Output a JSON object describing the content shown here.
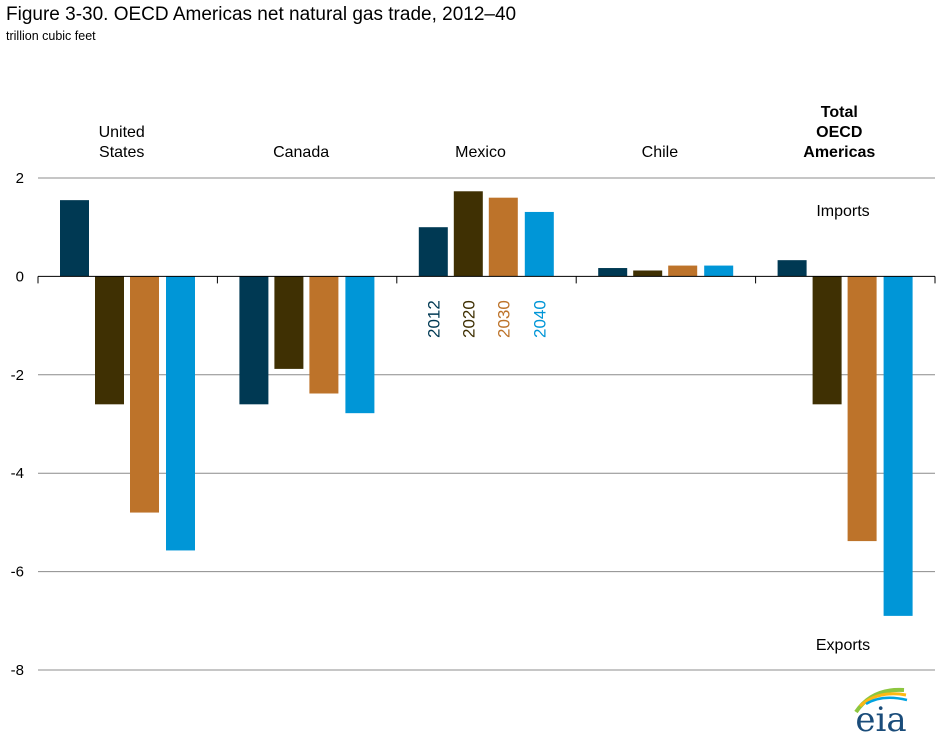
{
  "header": {
    "title": "Figure 3-30. OECD Americas net natural gas trade, 2012–40",
    "subtitle": "trillion cubic feet"
  },
  "annotations": {
    "imports": "Imports",
    "exports": "Exports"
  },
  "logo": {
    "text": "eia"
  },
  "chart_data": {
    "type": "bar",
    "categories": [
      [
        "United",
        "States"
      ],
      [
        "Canada"
      ],
      [
        "Mexico"
      ],
      [
        "Chile"
      ],
      [
        "Total",
        "OECD",
        "Americas"
      ]
    ],
    "category_bold": [
      false,
      false,
      false,
      false,
      true
    ],
    "series": [
      {
        "name": "2012",
        "color": "#003953",
        "values": [
          1.55,
          -2.6,
          1.0,
          0.17,
          0.33
        ]
      },
      {
        "name": "2020",
        "color": "#3f3003",
        "values": [
          -2.6,
          -1.88,
          1.73,
          0.12,
          -2.6
        ]
      },
      {
        "name": "2030",
        "color": "#bd732a",
        "values": [
          -4.8,
          -2.38,
          1.6,
          0.22,
          -5.38
        ]
      },
      {
        "name": "2040",
        "color": "#0096d7",
        "values": [
          -5.57,
          -2.78,
          1.31,
          0.22,
          -6.9
        ]
      }
    ],
    "ylim": [
      -8,
      2
    ],
    "yticks": [
      2,
      0,
      -2,
      -4,
      -6,
      -8
    ],
    "grid": true,
    "legend": "inline-vertical-under-mexico"
  }
}
